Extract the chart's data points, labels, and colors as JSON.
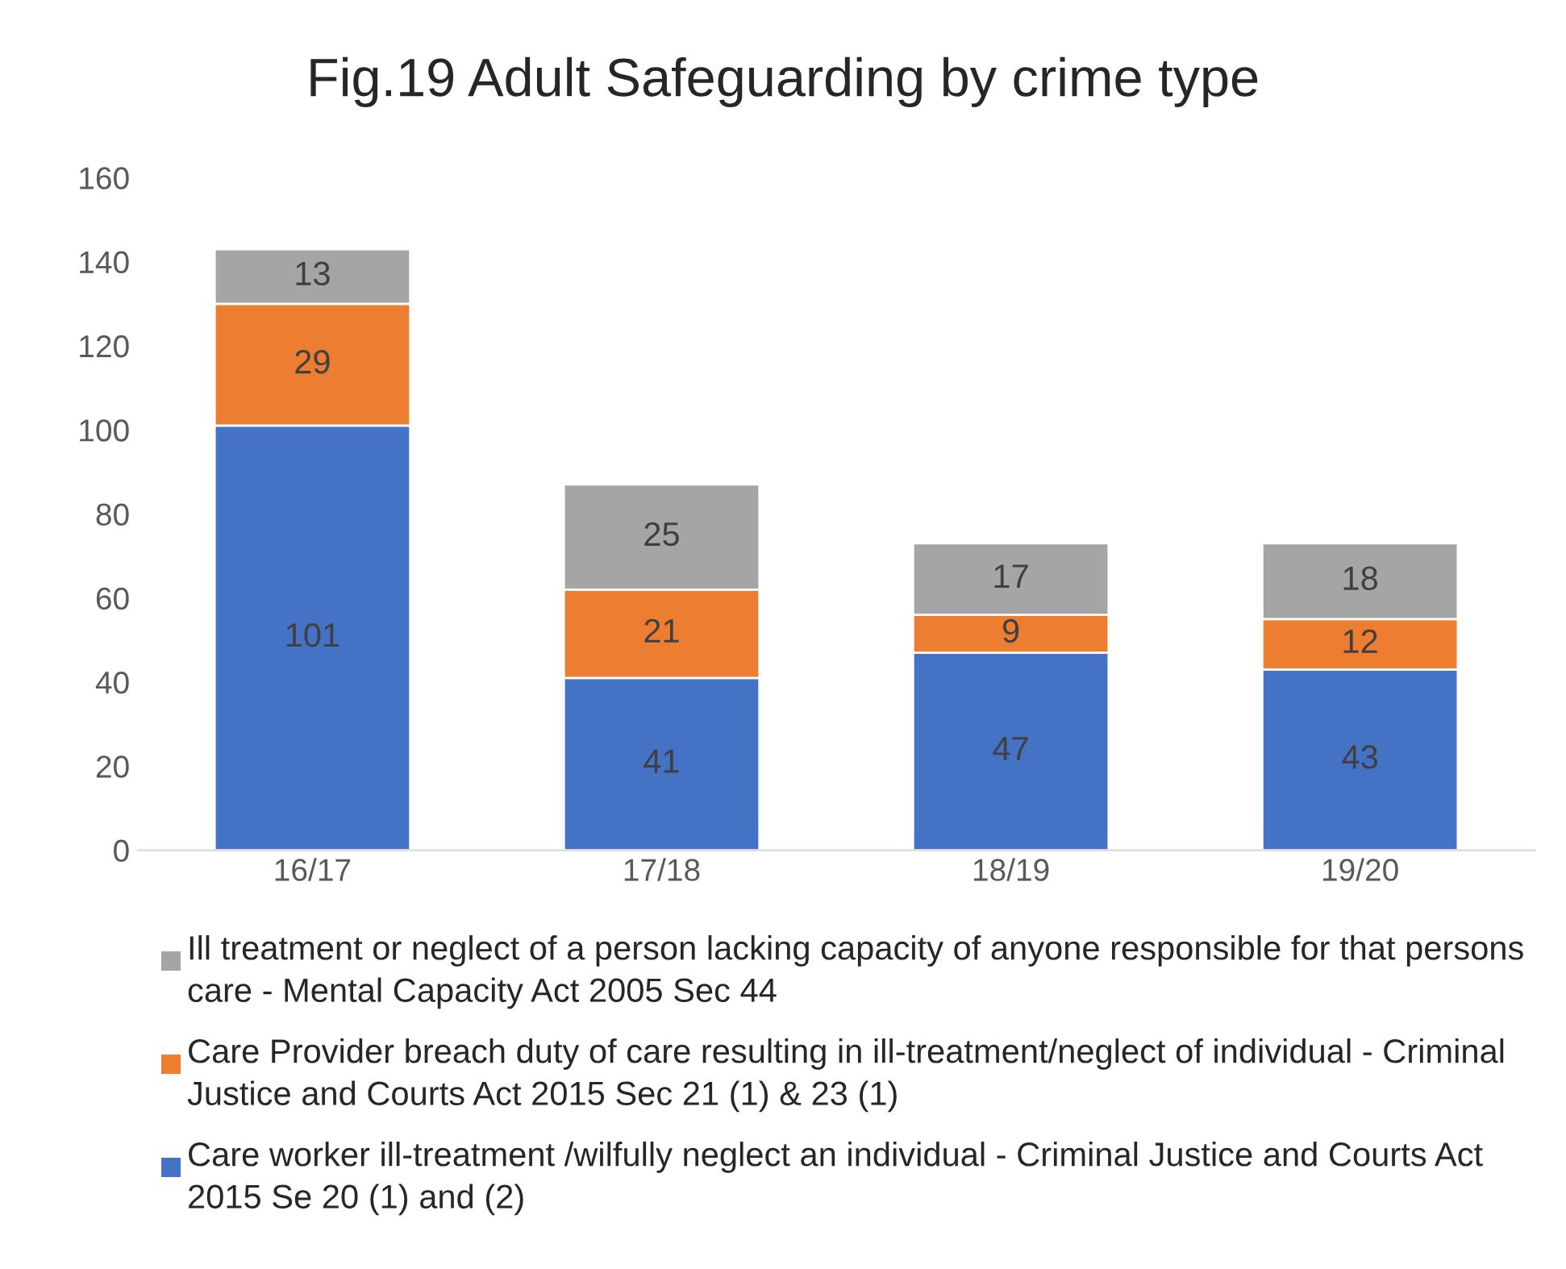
{
  "chart_data": {
    "type": "bar",
    "title": "Fig.19 Adult Safeguarding by crime type",
    "categories": [
      "16/17",
      "17/18",
      "18/19",
      "19/20"
    ],
    "stacked": true,
    "data_labels": true,
    "grid": false,
    "legend": "bottom",
    "ylim": [
      0,
      160
    ],
    "yticks": [
      0,
      20,
      40,
      60,
      80,
      100,
      120,
      140,
      160
    ],
    "series": [
      {
        "name": "Care worker ill-treatment /wilfully neglect an individual - Criminal Justice and Courts Act 2015 Se 20 (1) and (2)",
        "color": "#4472c4",
        "values": [
          101,
          41,
          47,
          43
        ]
      },
      {
        "name": "Care Provider breach duty of care resulting in ill-treatment/neglect of individual - Criminal Justice and Courts Act 2015 Sec 21 (1) & 23 (1)",
        "color": "#ed7d31",
        "values": [
          29,
          21,
          9,
          12
        ]
      },
      {
        "name": "Ill treatment or neglect of a person lacking capacity of anyone responsible for that persons care - Mental Capacity Act 2005 Sec 44",
        "color": "#a5a5a5",
        "values": [
          13,
          25,
          17,
          18
        ]
      }
    ]
  }
}
